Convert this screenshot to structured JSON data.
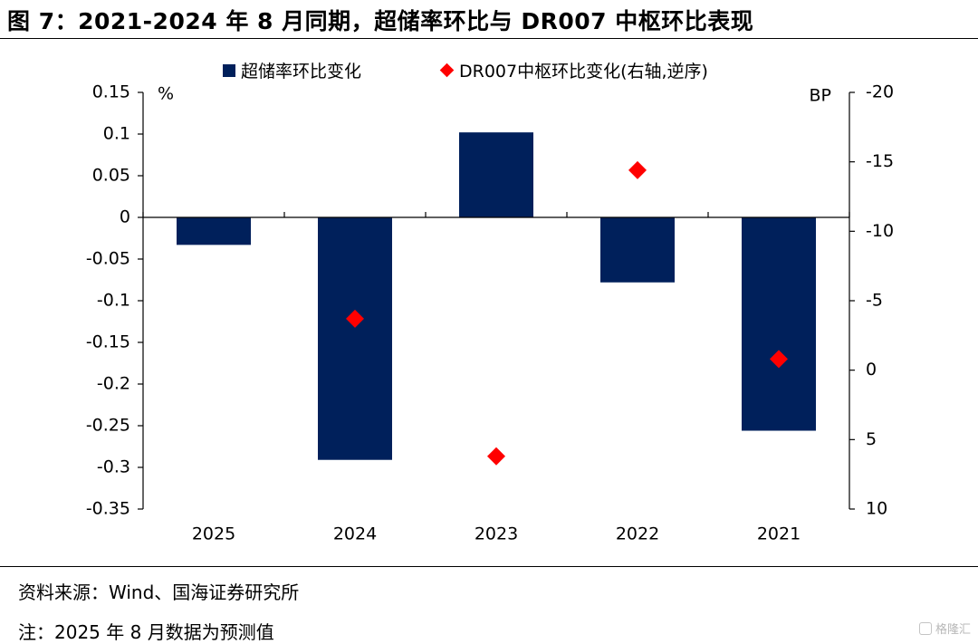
{
  "figure": {
    "title": "图 7：2021-2024 年 8 月同期，超储率环比与 DR007 中枢环比表现"
  },
  "legend": {
    "bar_label": "超储率环比变化",
    "point_label": "DR007中枢环比变化(右轴,逆序)"
  },
  "notes": {
    "source": "资料来源：Wind、国海证券研究所",
    "footnote": "注：2025 年 8 月数据为预测值"
  },
  "watermark": {
    "text": "格隆汇"
  },
  "colors": {
    "bar": "#00205b",
    "point": "#ff0000",
    "axis": "#000000"
  },
  "chart_data": {
    "type": "bar",
    "categories": [
      "2025",
      "2024",
      "2023",
      "2022",
      "2021"
    ],
    "series": [
      {
        "name": "超储率环比变化",
        "type": "bar",
        "axis": "left",
        "values": [
          -0.033,
          -0.291,
          0.102,
          -0.078,
          -0.256
        ]
      },
      {
        "name": "DR007中枢环比变化(右轴,逆序)",
        "type": "scatter",
        "marker": "diamond",
        "axis": "right",
        "values": [
          null,
          -3.7,
          6.2,
          -14.4,
          -0.8
        ]
      }
    ],
    "left_axis": {
      "unit": "%",
      "ylim": [
        -0.35,
        0.15
      ],
      "ticks": [
        0.15,
        0.1,
        0.05,
        0,
        -0.05,
        -0.1,
        -0.15,
        -0.2,
        -0.25,
        -0.3,
        -0.35
      ],
      "tick_labels": [
        "0.15",
        "0.1",
        "0.05",
        "0",
        "-0.05",
        "-0.1",
        "-0.15",
        "-0.2",
        "-0.25",
        "-0.3",
        "-0.35"
      ]
    },
    "right_axis": {
      "unit": "BP",
      "reversed": true,
      "ylim": [
        -20,
        10
      ],
      "ticks": [
        -20,
        -15,
        -10,
        -5,
        0,
        5,
        10
      ],
      "tick_labels": [
        "-20",
        "-15",
        "-10",
        "-5",
        "0",
        "5",
        "10"
      ]
    },
    "grid": false,
    "legend_position": "top"
  }
}
